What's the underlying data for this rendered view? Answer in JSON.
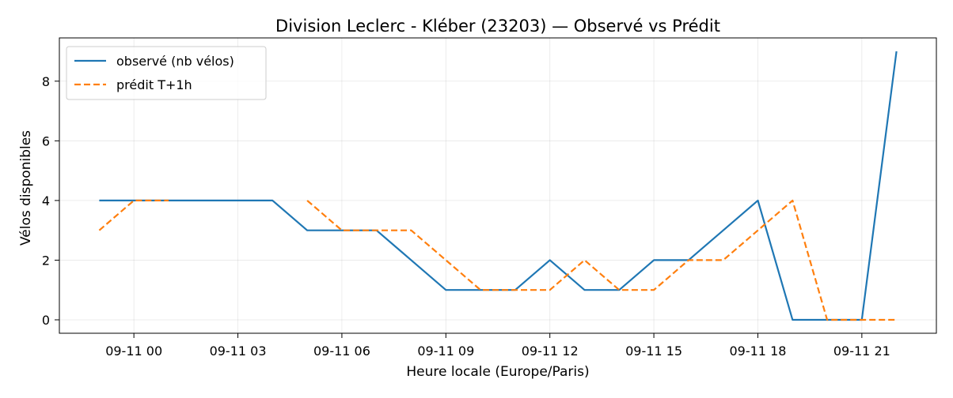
{
  "chart_data": {
    "type": "line",
    "title": "Division Leclerc - Kléber (23203) — Observé vs Prédit",
    "xlabel": "Heure locale (Europe/Paris)",
    "ylabel": "Vélos disponibles",
    "x_tick_labels": [
      "09-11 00",
      "09-11 03",
      "09-11 06",
      "09-11 09",
      "09-11 12",
      "09-11 15",
      "09-11 18",
      "09-11 21"
    ],
    "x_tick_hours": [
      0,
      3,
      6,
      9,
      12,
      15,
      18,
      21
    ],
    "y_ticks": [
      0,
      2,
      4,
      6,
      8
    ],
    "xlim_hours": [
      -2.15,
      23.15
    ],
    "ylim": [
      -0.45,
      9.45
    ],
    "grid": true,
    "legend_position": "upper-left",
    "x_hours": [
      -1,
      0,
      1,
      2,
      3,
      4,
      5,
      6,
      7,
      8,
      9,
      10,
      11,
      12,
      13,
      14,
      15,
      16,
      17,
      18,
      19,
      20,
      21,
      22
    ],
    "series": [
      {
        "name": "observé (nb vélos)",
        "color": "#1f77b4",
        "style": "solid",
        "values": [
          4,
          4,
          4,
          4,
          4,
          4,
          3,
          3,
          3,
          2,
          1,
          1,
          1,
          2,
          1,
          1,
          2,
          2,
          3,
          4,
          0,
          0,
          0,
          9
        ]
      },
      {
        "name": "prédit T+1h",
        "color": "#ff7f0e",
        "style": "dashed",
        "values": [
          3,
          4,
          4,
          null,
          null,
          null,
          4,
          3,
          3,
          3,
          2,
          1,
          1,
          1,
          2,
          1,
          1,
          2,
          2,
          3,
          4,
          0,
          0,
          0
        ]
      }
    ]
  }
}
